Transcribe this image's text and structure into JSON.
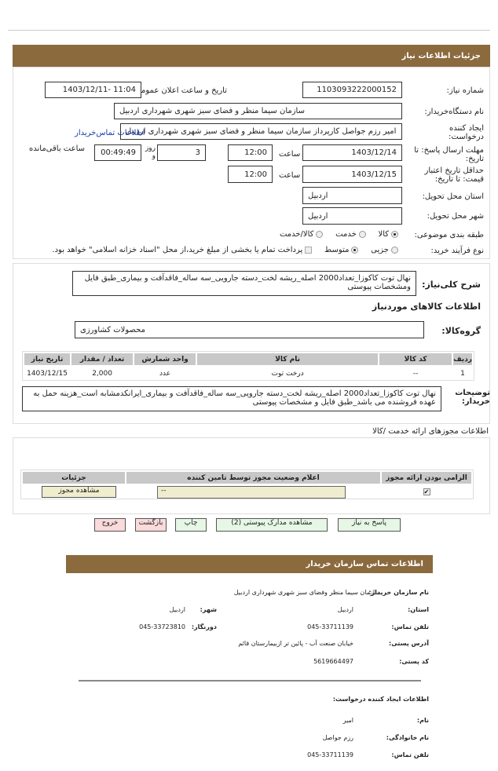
{
  "header": {
    "title": "جزئیات اطلاعات نیاز"
  },
  "fields": {
    "need_number_label": "شماره نیاز:",
    "need_number": "1103093222000152",
    "announce_label": "تاریخ و ساعت اعلان عمومی:",
    "announce_value": "1403/12/11- 11:04",
    "buyer_org_label": "نام دستگاه‌خریدار:",
    "buyer_org": "سازمان سیما منظر و فضای سبز شهری شهرداری اردبیل",
    "creator_label": "ایجاد کننده درخواست:",
    "creator": "امیر رزم جواصل کارپرداز سازمان سیما منظر و فضای سبز شهری شهرداری اردبیل",
    "contact_link": "اطلاعات تماس‌خریدار",
    "deadline_label": "مهلت ارسال پاسخ: تا تاریخ:",
    "deadline_date": "1403/12/14",
    "time_label": "ساعت",
    "deadline_time": "12:00",
    "days": "3",
    "days_label": "روز و",
    "remaining": "00:49:49",
    "remaining_label": "ساعت باقی‌مانده",
    "validity_label": "حداقل تاریخ اعتبار قیمت: تا تاریخ:",
    "validity_date": "1403/12/15",
    "validity_time": "12:00",
    "province_label": "استان محل تحویل:",
    "province": "اردبیل",
    "city_label": "شهر محل تحویل:",
    "city": "اردبیل",
    "category_label": "طبقه بندی موضوعی:",
    "category_options": [
      "کالا",
      "خدمت",
      "کالا/خدمت"
    ],
    "category_selected": "کالا",
    "purchase_label": "نوع فرآیند خرید:",
    "purchase_options": [
      "جزیی",
      "متوسط"
    ],
    "purchase_selected": "متوسط",
    "treasury_note": "پرداخت تمام یا بخشی از مبلغ خرید،از محل \"اسناد خزانه اسلامی\" خواهد بود."
  },
  "summary": {
    "label": "شرح کلی‌نیاز:",
    "text": "نهال توت کاکوزا_تعداد2000  اصله_ریشه لخت_دسته جارویی_سه ساله_فاقدآفت و  بیماری_طبق فایل ومشخصات  پیوستی"
  },
  "goods": {
    "title": "اطلاعات کالاهای موردنیاز",
    "group_label": "گروه‌کالا:",
    "group": "محصولات  کشاورزی",
    "columns": [
      "ردیف",
      "کد کالا",
      "نام کالا",
      "واحد شمارش",
      "تعداد / مقدار",
      "تاریخ نیاز"
    ],
    "rows": [
      [
        "1",
        "--",
        "درخت توت",
        "عدد",
        "2,000",
        "1403/12/15"
      ]
    ]
  },
  "buyer_notes": {
    "label": "توضیحات خریدار:",
    "text": "نهال توت کاکوزا_تعداد2000  اصله_ریشه لخت_دسته جارویی_سه ساله_فاقدآفت و  بیماری_ایرانکدمشابه است_هزینه حمل به عهده فروشنده می باشد_طبق فایل و  مشخصات  پیوستی"
  },
  "licenses": {
    "title": "اطلاعات  مجوزهای ارائه خدمت /کالا",
    "columns": [
      "الزامی بودن ارائه مجوز",
      "اعلام وضعیت مجوز توسط تامین کننده",
      "جزئیات"
    ],
    "status": "--",
    "view_button": "مشاهده مجوز",
    "required": true
  },
  "buttons": {
    "reply": "پاسخ به نیاز",
    "attachments": "مشاهده مدارک پیوستی (2)",
    "print": "چاپ",
    "back": "بازگشت",
    "exit": "خروج"
  },
  "contact": {
    "title": "اطلاعات تماس سازمان خریدار",
    "org_label": "نام سازمان خریدار:",
    "org": "سازمان سیما منظر وفضای سبز شهری شهرداری اردبیل",
    "province_label": "استان:",
    "province": "اردبیل",
    "city_label": "شهر:",
    "city": "اردبیل",
    "phone_label": "تلفن تماس:",
    "phone": "045-33711139",
    "fax_label": "دورنگار:",
    "fax": "045-33723810",
    "address_label": "آدرس پستی:",
    "address": "خیابان صنعت آب - پائین تر ازبیمارستان قائم",
    "postal_label": "کد پستی:",
    "postal": "5619664497",
    "creator_title": "اطلاعات ایجاد کننده درخواست:",
    "name_label": "نام:",
    "name": "امیر",
    "family_label": "نام خانوادگی:",
    "family": "رزم جواصل",
    "creator_phone_label": "تلفن تماس:",
    "creator_phone": "045-33711139"
  }
}
